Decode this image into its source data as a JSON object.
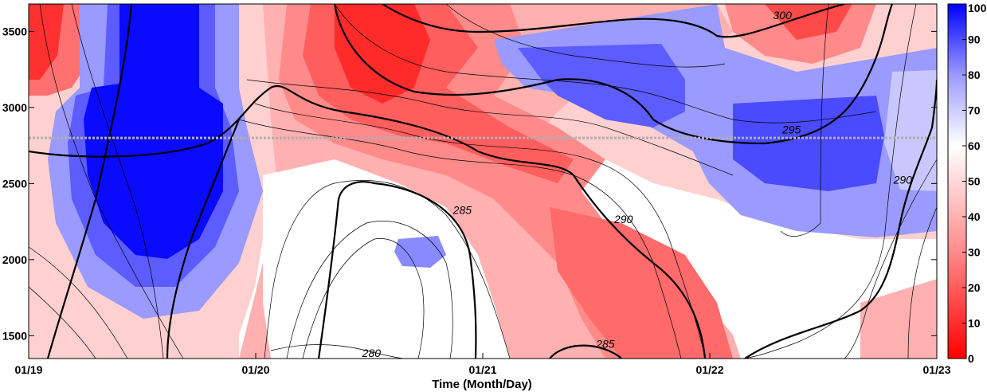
{
  "chart_data": {
    "type": "heatmap",
    "xlabel": "Time (Month/Day)",
    "ylabel": "",
    "x_ticks": [
      "01/19",
      "01/20",
      "01/21",
      "01/22",
      "01/23"
    ],
    "y_ticks": [
      1500,
      2000,
      2500,
      3000,
      3500
    ],
    "ylim": [
      1350,
      3680
    ],
    "colorbar": {
      "ticks": [
        0,
        10,
        20,
        30,
        40,
        50,
        60,
        70,
        80,
        90,
        100
      ],
      "range": [
        0,
        100
      ],
      "low_color": "#ff0000",
      "mid_color": "#ffffff",
      "high_color": "#0000ff"
    },
    "contour_labels": [
      {
        "text": "300",
        "day": 3.32,
        "alt": 3580
      },
      {
        "text": "295",
        "day": 3.36,
        "alt": 2830
      },
      {
        "text": "290",
        "day": 3.85,
        "alt": 2500
      },
      {
        "text": "290",
        "day": 2.62,
        "alt": 2240
      },
      {
        "text": "285",
        "day": 1.91,
        "alt": 2300
      },
      {
        "text": "285",
        "day": 2.54,
        "alt": 1420
      },
      {
        "text": "280",
        "day": 1.51,
        "alt": 1360
      }
    ],
    "reference_line_alt": 2800,
    "grid": false
  }
}
